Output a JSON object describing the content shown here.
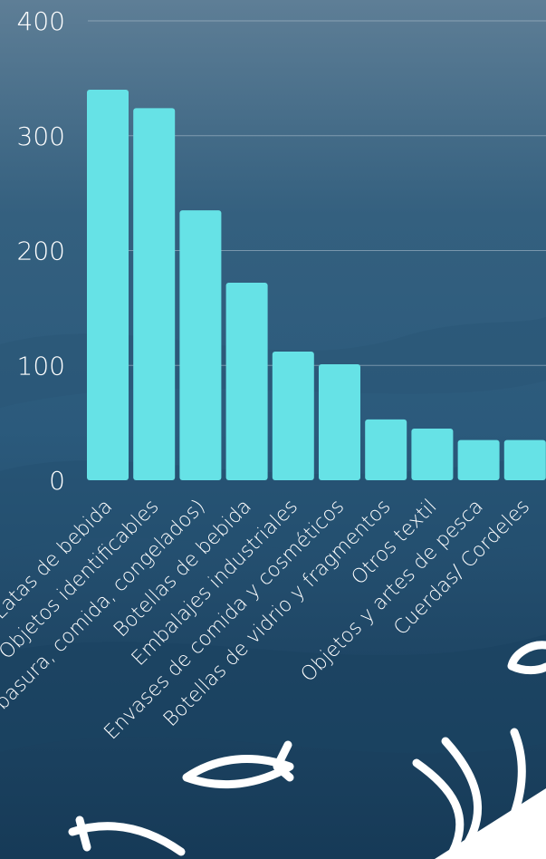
{
  "chart_data": {
    "type": "bar",
    "categories": [
      "Latas de bebida",
      "Objetos identificables",
      "(bolsas de basura, comida, congelados)",
      "Botellas de bebida",
      "Embalajes industriales",
      "Envases de comida y cosméticos",
      "Botellas de vidrio y fragmentos",
      "Otros textil",
      "Objetos y artes de pesca",
      "Cuerdas/ Cordeles"
    ],
    "values": [
      340,
      324,
      235,
      172,
      112,
      101,
      53,
      45,
      35,
      35
    ],
    "yticks": [
      0,
      100,
      200,
      300,
      400
    ],
    "ylim": [
      0,
      400
    ],
    "grid": true,
    "colors": {
      "bar": "#66e2e6",
      "label": "#ffffff"
    }
  },
  "decorations": [
    "fish-icon",
    "fish-icon",
    "seaweed-icon",
    "fish-icon"
  ]
}
